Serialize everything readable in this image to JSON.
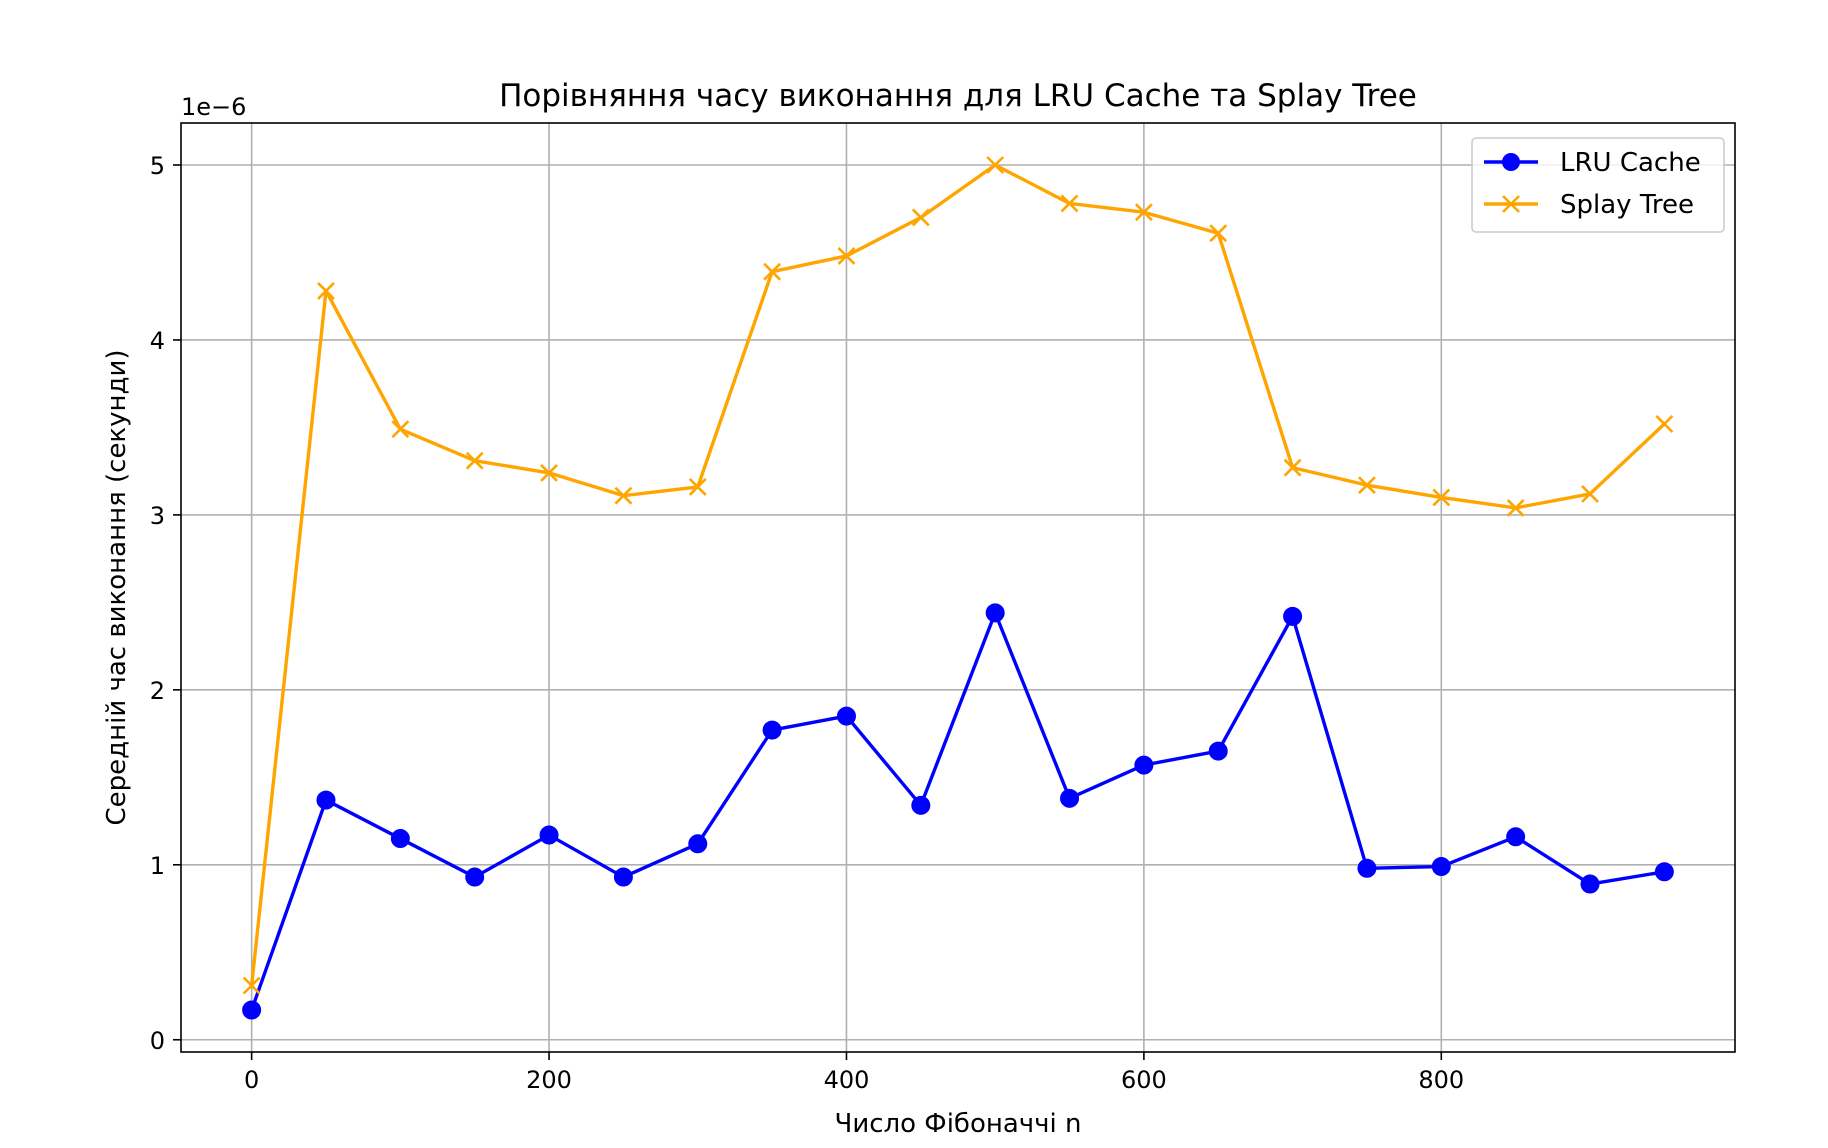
{
  "chart_data": {
    "type": "line",
    "title": "Порівняння часу виконання для LRU Cache та Splay Tree",
    "xlabel": "Число Фібоначчі n",
    "ylabel": "Середній час виконання (секунди)",
    "y_offset_text": "1e−6",
    "y_scale": 1e-06,
    "xlim": [
      -47.5,
      997.5
    ],
    "ylim": [
      -0.07,
      5.24
    ],
    "x_ticks": [
      0,
      200,
      400,
      600,
      800
    ],
    "x_tick_labels": [
      "0",
      "200",
      "400",
      "600",
      "800"
    ],
    "y_ticks": [
      0,
      1,
      2,
      3,
      4,
      5
    ],
    "y_tick_labels": [
      "0",
      "1",
      "2",
      "3",
      "4",
      "5"
    ],
    "grid": true,
    "legend_position": "top-right",
    "x": [
      0,
      50,
      100,
      150,
      200,
      250,
      300,
      350,
      400,
      450,
      500,
      550,
      600,
      650,
      700,
      750,
      800,
      850,
      900,
      950
    ],
    "series": [
      {
        "name": "LRU Cache",
        "color": "#0000ff",
        "marker": "circle",
        "values": [
          0.17,
          1.37,
          1.15,
          0.93,
          1.17,
          0.93,
          1.12,
          1.77,
          1.85,
          1.34,
          2.44,
          1.38,
          1.57,
          1.65,
          2.42,
          0.98,
          0.99,
          1.16,
          0.89,
          0.96
        ]
      },
      {
        "name": "Splay Tree",
        "color": "#ffa500",
        "marker": "x",
        "values": [
          0.31,
          4.28,
          3.49,
          3.31,
          3.24,
          3.11,
          3.16,
          4.39,
          4.48,
          4.7,
          5.0,
          4.78,
          4.73,
          4.61,
          3.27,
          3.17,
          3.1,
          3.04,
          3.12,
          3.52
        ]
      }
    ]
  }
}
